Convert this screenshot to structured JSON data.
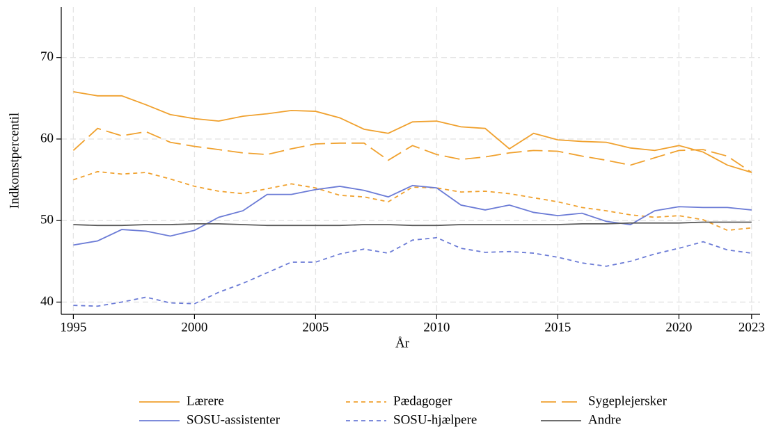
{
  "chart_data": {
    "type": "line",
    "xlabel": "År",
    "ylabel": "Indkomstpercentil",
    "x": [
      1995,
      1996,
      1997,
      1998,
      1999,
      2000,
      2001,
      2002,
      2003,
      2004,
      2005,
      2006,
      2007,
      2008,
      2009,
      2010,
      2011,
      2012,
      2013,
      2014,
      2015,
      2016,
      2017,
      2018,
      2019,
      2020,
      2021,
      2022,
      2023
    ],
    "xlim": [
      1994.5,
      2023.35
    ],
    "xticks": [
      1995,
      2000,
      2005,
      2010,
      2015,
      2020,
      2023
    ],
    "ylim": [
      38.5,
      76.2
    ],
    "yticks": [
      40,
      50,
      60,
      70
    ],
    "grid": true,
    "legend": "bottom",
    "series": [
      {
        "name": "Lærere",
        "color": "#f0a12e",
        "dash": "solid",
        "values": [
          65.8,
          65.3,
          65.3,
          64.2,
          63.0,
          62.5,
          62.2,
          62.8,
          63.1,
          63.5,
          63.4,
          62.6,
          61.2,
          60.7,
          62.1,
          62.2,
          61.5,
          61.3,
          58.8,
          60.7,
          59.9,
          59.7,
          59.6,
          58.9,
          58.6,
          59.2,
          58.4,
          56.8,
          55.9
        ]
      },
      {
        "name": "Pædagoger",
        "color": "#f0a12e",
        "dash": "short",
        "values": [
          55.0,
          56.0,
          55.7,
          55.9,
          55.1,
          54.2,
          53.6,
          53.3,
          53.9,
          54.5,
          54.0,
          53.1,
          52.9,
          52.3,
          54.1,
          54.0,
          53.5,
          53.6,
          53.3,
          52.8,
          52.3,
          51.6,
          51.2,
          50.7,
          50.4,
          50.6,
          50.1,
          48.8,
          49.1
        ]
      },
      {
        "name": "Sygeplejersker",
        "color": "#f0a12e",
        "dash": "long",
        "values": [
          58.6,
          61.3,
          60.4,
          60.9,
          59.6,
          59.1,
          58.7,
          58.3,
          58.1,
          58.8,
          59.4,
          59.5,
          59.5,
          57.4,
          59.2,
          58.1,
          57.5,
          57.8,
          58.3,
          58.6,
          58.5,
          57.9,
          57.4,
          56.8,
          57.7,
          58.6,
          58.7,
          57.9,
          55.9
        ]
      },
      {
        "name": "SOSU-assistenter",
        "color": "#6b7bd6",
        "dash": "solid",
        "values": [
          47.0,
          47.5,
          48.9,
          48.7,
          48.1,
          48.8,
          50.4,
          51.2,
          53.2,
          53.2,
          53.8,
          54.2,
          53.7,
          52.9,
          54.3,
          54.0,
          51.9,
          51.3,
          51.9,
          51.0,
          50.6,
          50.9,
          49.9,
          49.5,
          51.2,
          51.7,
          51.6,
          51.6,
          51.3
        ]
      },
      {
        "name": "SOSU-hjælpere",
        "color": "#6b7bd6",
        "dash": "short",
        "values": [
          39.6,
          39.5,
          40.0,
          40.6,
          39.9,
          39.8,
          41.2,
          42.3,
          43.6,
          44.9,
          44.9,
          45.9,
          46.5,
          46.0,
          47.6,
          47.9,
          46.6,
          46.1,
          46.2,
          46.0,
          45.5,
          44.8,
          44.4,
          45.0,
          45.9,
          46.6,
          47.4,
          46.4,
          46.0
        ]
      },
      {
        "name": "Andre",
        "color": "#5a5a5a",
        "dash": "solid",
        "values": [
          49.5,
          49.4,
          49.4,
          49.5,
          49.5,
          49.6,
          49.6,
          49.5,
          49.4,
          49.4,
          49.4,
          49.4,
          49.5,
          49.5,
          49.4,
          49.4,
          49.5,
          49.5,
          49.5,
          49.5,
          49.5,
          49.6,
          49.6,
          49.7,
          49.7,
          49.7,
          49.8,
          49.8,
          49.8
        ]
      }
    ]
  }
}
